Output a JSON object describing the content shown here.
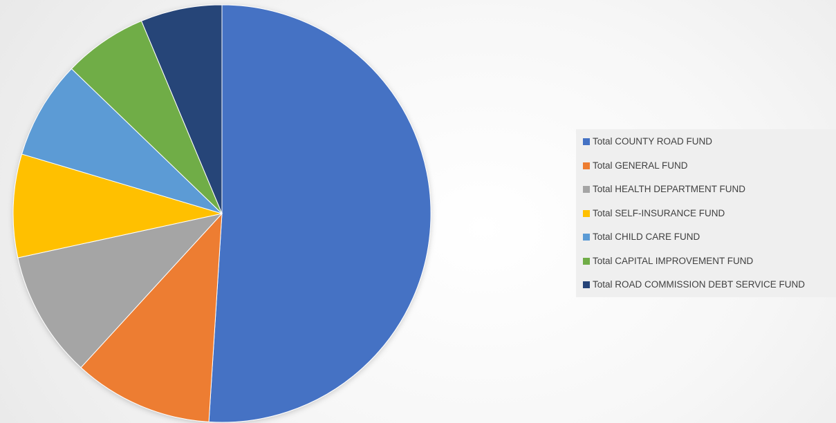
{
  "chart_data": {
    "type": "pie",
    "title": "",
    "start_angle_deg": 0,
    "direction": "clockwise",
    "legend_position": "right",
    "slices": [
      {
        "label": "Total COUNTY ROAD FUND",
        "value": 51.0,
        "color": "#4472C4"
      },
      {
        "label": "Total GENERAL FUND",
        "value": 10.8,
        "color": "#ED7D31"
      },
      {
        "label": "Total HEALTH DEPARTMENT FUND",
        "value": 9.8,
        "color": "#A5A5A5"
      },
      {
        "label": "Total SELF-INSURANCE FUND",
        "value": 8.0,
        "color": "#FFC000"
      },
      {
        "label": "Total CHILD CARE FUND",
        "value": 7.6,
        "color": "#5B9BD5"
      },
      {
        "label": "Total CAPITAL IMPROVEMENT FUND",
        "value": 6.5,
        "color": "#70AD47"
      },
      {
        "label": "Total ROAD COMMISSION DEBT SERVICE FUND",
        "value": 6.3,
        "color": "#264478"
      }
    ]
  }
}
